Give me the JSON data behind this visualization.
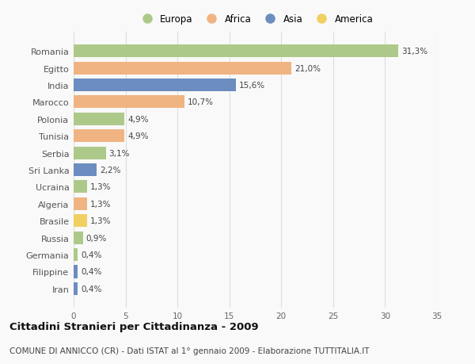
{
  "countries": [
    "Romania",
    "Egitto",
    "India",
    "Marocco",
    "Polonia",
    "Tunisia",
    "Serbia",
    "Sri Lanka",
    "Ucraina",
    "Algeria",
    "Brasile",
    "Russia",
    "Germania",
    "Filippine",
    "Iran"
  ],
  "values": [
    31.3,
    21.0,
    15.6,
    10.7,
    4.9,
    4.9,
    3.1,
    2.2,
    1.3,
    1.3,
    1.3,
    0.9,
    0.4,
    0.4,
    0.4
  ],
  "labels": [
    "31,3%",
    "21,0%",
    "15,6%",
    "10,7%",
    "4,9%",
    "4,9%",
    "3,1%",
    "2,2%",
    "1,3%",
    "1,3%",
    "1,3%",
    "0,9%",
    "0,4%",
    "0,4%",
    "0,4%"
  ],
  "continents": [
    "Europa",
    "Africa",
    "Asia",
    "Africa",
    "Europa",
    "Africa",
    "Europa",
    "Asia",
    "Europa",
    "Africa",
    "America",
    "Europa",
    "Europa",
    "Asia",
    "Asia"
  ],
  "continent_colors": {
    "Europa": "#adc98a",
    "Africa": "#f0b482",
    "Asia": "#6b8dbf",
    "America": "#f0d060"
  },
  "legend_order": [
    "Europa",
    "Africa",
    "Asia",
    "America"
  ],
  "legend_colors": [
    "#adc98a",
    "#f0b482",
    "#6b8dbf",
    "#f0d060"
  ],
  "title": "Cittadini Stranieri per Cittadinanza - 2009",
  "subtitle": "COMUNE DI ANNICCO (CR) - Dati ISTAT al 1° gennaio 2009 - Elaborazione TUTTITALIA.IT",
  "xlim": [
    0,
    35
  ],
  "xticks": [
    0,
    5,
    10,
    15,
    20,
    25,
    30,
    35
  ],
  "background_color": "#f9f9f9",
  "grid_color": "#dddddd",
  "bar_height": 0.75,
  "label_fontsize": 7.5,
  "ytick_fontsize": 8,
  "xtick_fontsize": 7.5,
  "title_fontsize": 9.5,
  "subtitle_fontsize": 7.5
}
